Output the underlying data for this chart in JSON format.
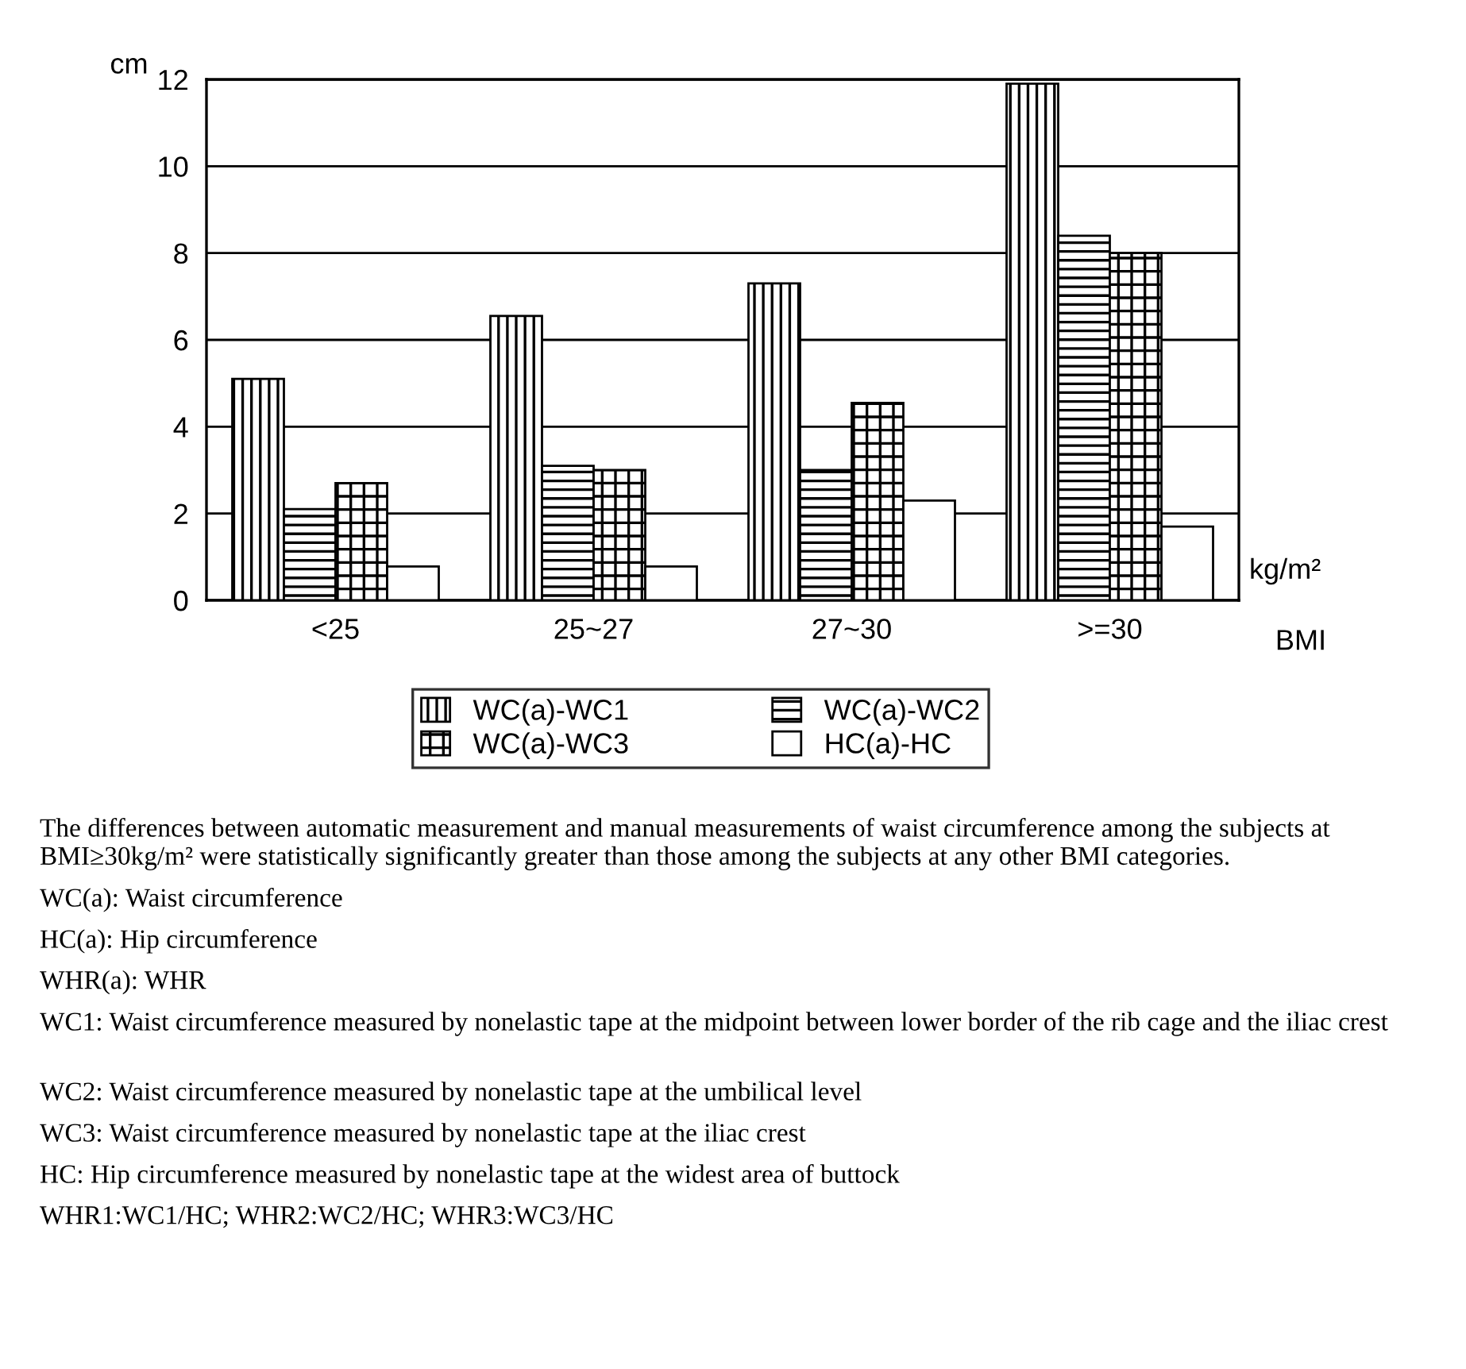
{
  "chart_data": {
    "type": "bar",
    "ylabel": "cm",
    "xlabel": "BMI",
    "categories": [
      "<25",
      "25~27",
      "27~30",
      ">=30"
    ],
    "series": [
      {
        "name": "WC(a)-WC1",
        "color": "#000000",
        "values": [
          5.1,
          6.55,
          7.3,
          11.9
        ]
      },
      {
        "name": "WC(a)-WC2",
        "color": "#000000",
        "values": [
          2.1,
          3.1,
          3.0,
          8.4
        ]
      },
      {
        "name": "WC(a)-WC3",
        "color": "#000000",
        "values": [
          2.7,
          3.0,
          4.55,
          8.0
        ]
      },
      {
        "name": "HC(a)-HC",
        "color": "#ffffff",
        "values": [
          0.78,
          0.78,
          2.3,
          1.7
        ]
      }
    ],
    "ylim": [
      0,
      12
    ],
    "yticks": [
      0,
      2,
      4,
      6,
      8,
      10,
      12
    ],
    "grid": "y",
    "legend": "bottom",
    "annotations": [
      "kg/m²",
      "The differences between automatic measurement and manual measurements of waist circumference among the subjects at BMI≥30kg/m² were statistically significantly greater than those among the subjects at any other BMI categories.",
      "WC(a): Waist circumference",
      "HC(a): Hip circumference",
      "WHR(a): WHR",
      "WC1: Waist circumference measured by nonelastic tape at the midpoint between lower border of the rib cage and the iliac crest",
      "WC2: Waist circumference measured by nonelastic tape at the umbilical level",
      "WC3: Waist circumference measured by nonelastic tape at the iliac crest",
      "HC: Hip circumference measured by nonelastic tape at the widest area of buttock",
      "WHR1:WC1/HC; WHR2:WC2/HC; WHR3:WC3/HC"
    ]
  }
}
